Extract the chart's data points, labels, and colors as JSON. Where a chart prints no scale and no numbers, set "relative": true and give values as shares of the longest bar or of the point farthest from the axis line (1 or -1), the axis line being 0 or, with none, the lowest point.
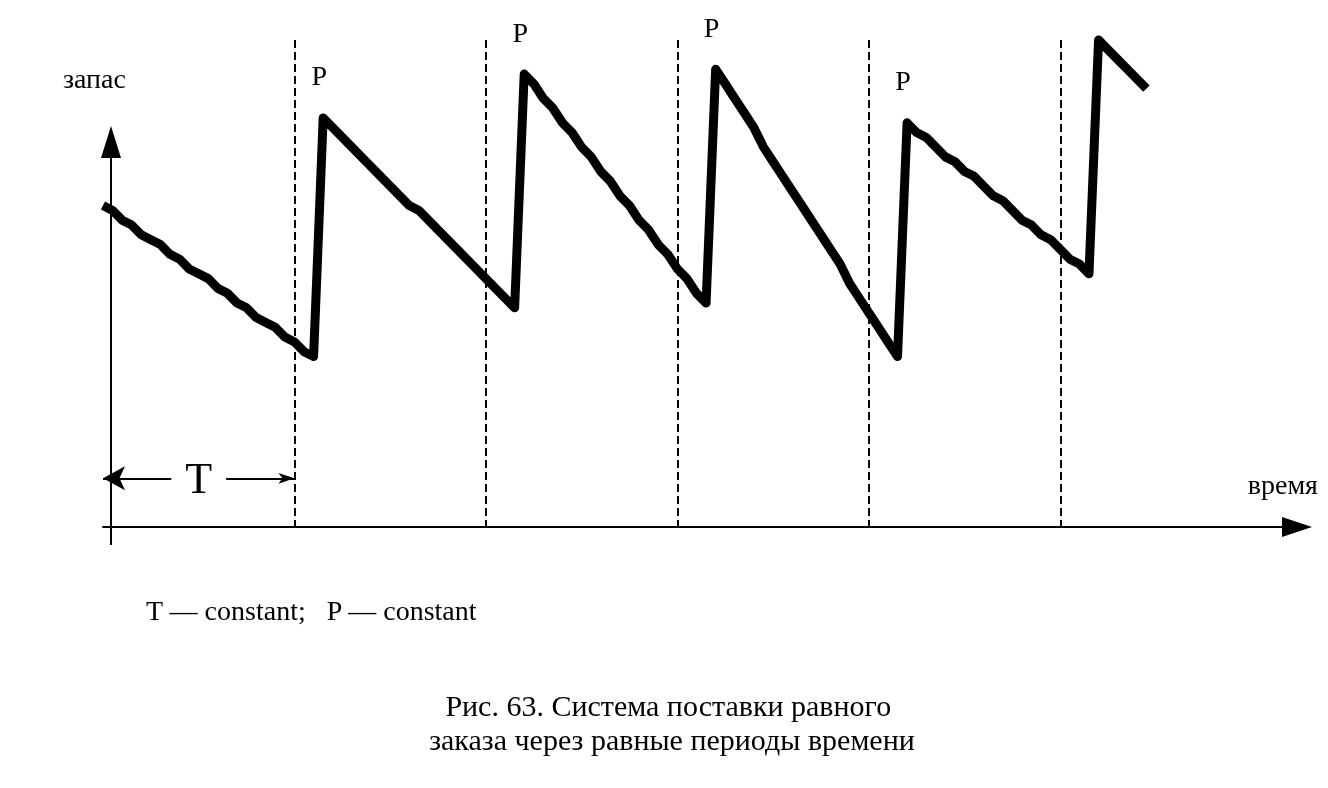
{
  "chart_data": {
    "type": "line",
    "relative": true,
    "title": "Рис. 63. Система поставки равного заказа через равные периоды времени",
    "xlabel": "время",
    "ylabel": "запас",
    "categories": [
      null,
      null,
      null,
      null,
      null,
      null,
      null,
      null,
      null,
      null,
      null,
      null,
      null,
      null,
      null,
      null,
      null,
      null,
      null,
      null,
      null,
      null,
      null,
      null,
      null,
      null,
      null,
      null,
      null,
      null,
      null,
      null,
      null,
      null,
      null,
      null,
      null,
      null,
      null,
      null,
      null,
      null,
      null,
      null,
      null,
      null,
      null,
      null,
      null,
      null,
      null,
      null,
      null,
      null,
      null,
      null,
      null,
      null,
      null,
      null,
      null,
      null,
      null,
      null,
      null,
      null,
      null,
      null,
      null,
      null,
      null,
      null,
      null,
      null,
      null,
      null,
      null,
      null,
      null,
      null,
      null,
      null,
      null,
      null,
      null,
      null,
      null,
      null,
      null,
      null,
      null,
      null,
      null,
      null,
      null,
      null,
      null,
      null,
      null,
      null,
      null,
      null,
      null,
      null,
      null,
      null,
      null,
      null,
      null,
      null
    ],
    "series": [
      {
        "color": "#000000",
        "values": [
          0.66,
          0.65,
          0.63,
          0.62,
          0.6,
          0.59,
          0.58,
          0.56,
          0.55,
          0.53,
          0.52,
          0.51,
          0.49,
          0.48,
          0.46,
          0.45,
          0.43,
          0.42,
          0.41,
          0.39,
          0.38,
          0.36,
          0.35,
          0.84,
          0.82,
          0.8,
          0.78,
          0.76,
          0.74,
          0.72,
          0.7,
          0.68,
          0.66,
          0.65,
          0.63,
          0.61,
          0.59,
          0.57,
          0.55,
          0.53,
          0.51,
          0.49,
          0.47,
          0.45,
          0.93,
          0.91,
          0.88,
          0.86,
          0.83,
          0.81,
          0.78,
          0.76,
          0.73,
          0.71,
          0.68,
          0.66,
          0.63,
          0.61,
          0.58,
          0.56,
          0.53,
          0.51,
          0.48,
          0.46,
          0.94,
          0.91,
          0.88,
          0.85,
          0.82,
          0.78,
          0.75,
          0.72,
          0.69,
          0.66,
          0.63,
          0.6,
          0.57,
          0.54,
          0.5,
          0.47,
          0.44,
          0.41,
          0.38,
          0.35,
          0.83,
          0.81,
          0.8,
          0.78,
          0.76,
          0.75,
          0.73,
          0.72,
          0.7,
          0.68,
          0.67,
          0.65,
          0.63,
          0.62,
          0.6,
          0.59,
          0.57,
          0.55,
          0.54,
          0.52,
          1,
          0.98,
          0.96,
          0.94,
          0.92,
          0.9
        ]
      }
    ],
    "annotations": [
      "T",
      "P",
      "P",
      "P",
      "P",
      "T — constant;   P — constant"
    ],
    "grid": "x",
    "marker": "none",
    "line_style": "solid"
  }
}
